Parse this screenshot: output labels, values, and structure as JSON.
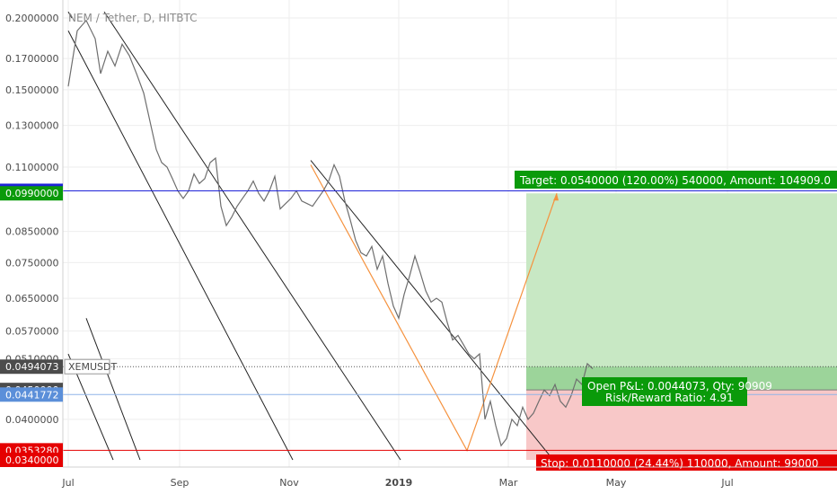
{
  "chart_data": {
    "type": "line",
    "title": "NEM / Tether, D, HITBTC",
    "symbol": "XEMUSDT",
    "x_ticks": [
      "Jul",
      "Sep",
      "Nov",
      "2019",
      "Mar",
      "May",
      "Jul"
    ],
    "y_ticks": [
      "0.2000000",
      "0.1700000",
      "0.1500000",
      "0.1300000",
      "0.1100000",
      "0.0850000",
      "0.0750000",
      "0.0650000",
      "0.0570000",
      "0.0510000",
      "0.0400000"
    ],
    "scale": "log",
    "ylim": [
      0.032,
      0.21
    ],
    "grid": true,
    "price_tags": [
      {
        "label": "0.1000000",
        "value": 0.1,
        "color": "#1e22d8"
      },
      {
        "label": "0.0990000",
        "value": 0.099,
        "color": "#0a9a0a"
      },
      {
        "label": "0.0494073",
        "value": 0.0494073,
        "color": "#4c4c4c"
      },
      {
        "label": "0.0450000",
        "value": 0.045,
        "color": "#4c4c4c"
      },
      {
        "label": "0.0441772",
        "value": 0.0441772,
        "color": "#5b8fd9"
      },
      {
        "label": "0.0353280",
        "value": 0.035328,
        "color": "#e50000"
      },
      {
        "label": "0.0340000",
        "value": 0.034,
        "color": "#e50000"
      }
    ],
    "series": [
      {
        "values_by_day": [
          [
            0,
            0.152
          ],
          [
            5,
            0.19
          ],
          [
            10,
            0.198
          ],
          [
            15,
            0.184
          ],
          [
            18,
            0.16
          ],
          [
            22,
            0.175
          ],
          [
            26,
            0.165
          ],
          [
            30,
            0.18
          ],
          [
            34,
            0.172
          ],
          [
            38,
            0.16
          ],
          [
            42,
            0.148
          ],
          [
            46,
            0.13
          ],
          [
            49,
            0.118
          ],
          [
            52,
            0.112
          ],
          [
            55,
            0.11
          ],
          [
            58,
            0.105
          ],
          [
            61,
            0.1
          ],
          [
            64,
            0.097
          ],
          [
            67,
            0.1
          ],
          [
            70,
            0.107
          ],
          [
            73,
            0.103
          ],
          [
            76,
            0.105
          ],
          [
            79,
            0.112
          ],
          [
            82,
            0.114
          ],
          [
            85,
            0.094
          ],
          [
            88,
            0.087
          ],
          [
            91,
            0.09
          ],
          [
            94,
            0.094
          ],
          [
            97,
            0.097
          ],
          [
            100,
            0.1
          ],
          [
            103,
            0.104
          ],
          [
            106,
            0.099
          ],
          [
            109,
            0.096
          ],
          [
            112,
            0.1
          ],
          [
            115,
            0.106
          ],
          [
            118,
            0.093
          ],
          [
            121,
            0.095
          ],
          [
            124,
            0.097
          ],
          [
            127,
            0.1
          ],
          [
            130,
            0.096
          ],
          [
            133,
            0.095
          ],
          [
            136,
            0.094
          ],
          [
            139,
            0.097
          ],
          [
            142,
            0.1
          ],
          [
            145,
            0.104
          ],
          [
            148,
            0.111
          ],
          [
            151,
            0.106
          ],
          [
            154,
            0.096
          ],
          [
            157,
            0.089
          ],
          [
            160,
            0.082
          ],
          [
            163,
            0.078
          ],
          [
            166,
            0.077
          ],
          [
            169,
            0.08
          ],
          [
            172,
            0.073
          ],
          [
            175,
            0.077
          ],
          [
            178,
            0.069
          ],
          [
            181,
            0.063
          ],
          [
            184,
            0.06
          ],
          [
            187,
            0.066
          ],
          [
            190,
            0.071
          ],
          [
            193,
            0.077
          ],
          [
            196,
            0.072
          ],
          [
            199,
            0.067
          ],
          [
            202,
            0.064
          ],
          [
            205,
            0.065
          ],
          [
            208,
            0.064
          ],
          [
            211,
            0.059
          ],
          [
            214,
            0.055
          ],
          [
            217,
            0.056
          ],
          [
            220,
            0.054
          ],
          [
            223,
            0.052
          ],
          [
            226,
            0.051
          ],
          [
            229,
            0.052
          ],
          [
            232,
            0.04
          ],
          [
            235,
            0.043
          ],
          [
            238,
            0.039
          ],
          [
            241,
            0.036
          ],
          [
            244,
            0.037
          ],
          [
            247,
            0.04
          ],
          [
            250,
            0.039
          ],
          [
            253,
            0.042
          ],
          [
            256,
            0.04
          ],
          [
            259,
            0.041
          ],
          [
            262,
            0.043
          ],
          [
            265,
            0.045
          ],
          [
            268,
            0.044
          ],
          [
            271,
            0.046
          ],
          [
            274,
            0.043
          ],
          [
            277,
            0.042
          ],
          [
            280,
            0.044
          ],
          [
            283,
            0.047
          ],
          [
            286,
            0.046
          ],
          [
            289,
            0.05
          ],
          [
            292,
            0.049
          ]
        ]
      }
    ],
    "position": {
      "entry": 0.045,
      "target": 0.099,
      "stop": 0.034,
      "target_label": "Target: 0.0540000 (120.00%) 540000, Amount: 104909.0",
      "pnl_label": "Open P&L: 0.0044073, Qty: 90909",
      "rr_label": "Risk/Reward Ratio: 4.91",
      "stop_label": "Stop: 0.0110000 (24.44%) 110000, Amount: 99000"
    },
    "colors": {
      "price_line": "#6e6e6e",
      "profit_zone": "#c8e8c4",
      "profit_zone_active": "#9cd49a",
      "loss_zone": "#f8c8c8",
      "accent_green": "#0a9a0a",
      "accent_red": "#e50000",
      "accent_blue": "#1e22d8",
      "trend_orange": "#f5923e"
    }
  }
}
